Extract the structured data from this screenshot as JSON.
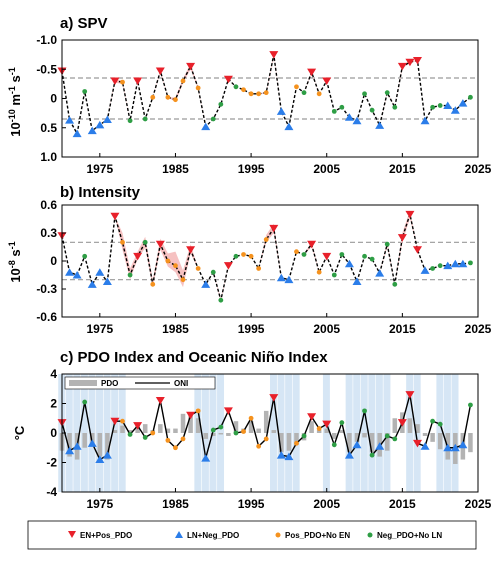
{
  "colors": {
    "en_pos_pdo": "#e8202a",
    "ln_neg_pdo": "#2b7de9",
    "pos_pdo_no_en": "#f5921e",
    "neg_pdo_no_ln": "#2e9e45",
    "line": "#000000",
    "threshold": "#9a9a9a",
    "uncertainty": "#f4b6b6",
    "pdo_bar": "#b3b3b3",
    "ln_shading": "#d6e6f5"
  },
  "chart_data": [
    {
      "type": "line",
      "title": "a) SPV",
      "ylabel_main": "10",
      "ylabel_sup1": "-10",
      "ylabel_mid": " m",
      "ylabel_sup2": "-1",
      "ylabel_mid2": " s",
      "ylabel_sup3": "-1",
      "xlim": [
        1970,
        2025
      ],
      "ylim": [
        1.0,
        -1.0
      ],
      "y_reversed": true,
      "xticks": [
        1975,
        1985,
        1995,
        2005,
        2015,
        2025
      ],
      "yticks": [
        -1.0,
        -0.5,
        0,
        0.5,
        1.0
      ],
      "ytick_labels": [
        "-1.0",
        "-0.5",
        "0",
        "0.5",
        "1.0"
      ],
      "thresholds": [
        -0.35,
        0.35
      ],
      "x": [
        1970,
        1971,
        1972,
        1973,
        1974,
        1975,
        1976,
        1977,
        1978,
        1979,
        1980,
        1981,
        1982,
        1983,
        1984,
        1985,
        1986,
        1987,
        1988,
        1989,
        1990,
        1991,
        1992,
        1993,
        1994,
        1995,
        1996,
        1997,
        1998,
        1999,
        2000,
        2001,
        2002,
        2003,
        2004,
        2005,
        2006,
        2007,
        2008,
        2009,
        2010,
        2011,
        2012,
        2013,
        2014,
        2015,
        2016,
        2017,
        2018,
        2019,
        2020,
        2021,
        2022,
        2023,
        2024
      ],
      "values": [
        -0.47,
        0.37,
        0.6,
        -0.12,
        0.55,
        0.45,
        0.36,
        -0.3,
        -0.28,
        0.38,
        -0.3,
        0.35,
        -0.02,
        -0.47,
        -0.02,
        0.02,
        -0.3,
        -0.55,
        -0.18,
        0.48,
        0.35,
        0.1,
        -0.33,
        -0.2,
        -0.15,
        -0.08,
        -0.08,
        -0.1,
        -0.75,
        0.22,
        0.48,
        -0.2,
        -0.1,
        -0.45,
        -0.08,
        -0.3,
        0.22,
        0.15,
        0.32,
        0.38,
        -0.08,
        0.2,
        0.46,
        -0.1,
        0.15,
        -0.55,
        -0.62,
        -0.65,
        0.38,
        0.15,
        0.12,
        0.12,
        0.2,
        0.08,
        -0.02
      ],
      "band_low": [
        -0.47,
        0.37,
        0.6,
        -0.12,
        0.55,
        0.45,
        0.36,
        -0.33,
        -0.31,
        0.38,
        -0.3,
        0.35,
        -0.02,
        -0.5,
        -0.02,
        -0.02,
        -0.34,
        -0.6,
        -0.2,
        0.48,
        0.35,
        0.1,
        -0.33,
        -0.2,
        -0.15,
        -0.08,
        -0.08,
        -0.12,
        -0.78,
        0.22,
        0.48,
        -0.2,
        -0.1,
        -0.47,
        -0.08,
        -0.3,
        0.22,
        0.15,
        0.32,
        0.38,
        -0.08,
        0.2,
        0.46,
        -0.12,
        0.15,
        -0.58,
        -0.64,
        -0.65,
        0.38,
        0.15,
        0.12,
        0.12,
        0.2,
        0.08,
        -0.02
      ],
      "band_high": [
        -0.47,
        0.37,
        0.6,
        -0.12,
        0.55,
        0.45,
        0.36,
        -0.27,
        -0.25,
        0.38,
        -0.3,
        0.35,
        -0.02,
        -0.44,
        -0.02,
        0.06,
        -0.26,
        -0.5,
        -0.16,
        0.48,
        0.35,
        0.1,
        -0.33,
        -0.2,
        -0.15,
        -0.08,
        -0.08,
        -0.08,
        -0.72,
        0.22,
        0.48,
        -0.2,
        -0.1,
        -0.43,
        -0.08,
        -0.3,
        0.22,
        0.15,
        0.32,
        0.38,
        -0.08,
        0.2,
        0.46,
        -0.08,
        0.15,
        -0.52,
        -0.6,
        -0.65,
        0.38,
        0.15,
        0.12,
        0.12,
        0.2,
        0.08,
        -0.02
      ],
      "categories": [
        "E",
        "L",
        "L",
        "G",
        "L",
        "L",
        "L",
        "E",
        "O",
        "G",
        "E",
        "G",
        "O",
        "E",
        "O",
        "O",
        "O",
        "E",
        "O",
        "L",
        "G",
        "G",
        "E",
        "G",
        "O",
        "O",
        "O",
        "O",
        "E",
        "L",
        "L",
        "O",
        "G",
        "E",
        "O",
        "E",
        "G",
        "G",
        "L",
        "L",
        "G",
        "G",
        "L",
        "G",
        "G",
        "E",
        "E",
        "E",
        "L",
        "G",
        "G",
        "L",
        "L",
        "L",
        "G"
      ]
    },
    {
      "type": "line",
      "title": "b) Intensity",
      "ylabel_main": "10",
      "ylabel_sup1": "-8",
      "ylabel_mid": " s",
      "ylabel_sup2": "-1",
      "xlim": [
        1970,
        2025
      ],
      "ylim": [
        -0.6,
        0.6
      ],
      "xticks": [
        1975,
        1985,
        1995,
        2005,
        2015,
        2025
      ],
      "yticks": [
        -0.6,
        -0.3,
        0,
        0.3,
        0.6
      ],
      "ytick_labels": [
        "-0.6",
        "-0.3",
        "0",
        "0.3",
        "0.6"
      ],
      "thresholds": [
        0.2,
        -0.2
      ],
      "x": [
        1970,
        1971,
        1972,
        1973,
        1974,
        1975,
        1976,
        1977,
        1978,
        1979,
        1980,
        1981,
        1982,
        1983,
        1984,
        1985,
        1986,
        1987,
        1988,
        1989,
        1990,
        1991,
        1992,
        1993,
        1994,
        1995,
        1996,
        1997,
        1998,
        1999,
        2000,
        2001,
        2002,
        2003,
        2004,
        2005,
        2006,
        2007,
        2008,
        2009,
        2010,
        2011,
        2012,
        2013,
        2014,
        2015,
        2016,
        2017,
        2018,
        2019,
        2020,
        2021,
        2022,
        2023,
        2024
      ],
      "values": [
        0.27,
        -0.12,
        -0.15,
        0.05,
        -0.25,
        -0.12,
        -0.22,
        0.48,
        0.2,
        -0.15,
        0.05,
        0.2,
        -0.25,
        0.18,
        0.0,
        -0.05,
        -0.2,
        0.12,
        -0.08,
        -0.25,
        -0.12,
        -0.42,
        -0.05,
        0.05,
        0.07,
        0.05,
        -0.08,
        0.23,
        0.35,
        -0.18,
        -0.2,
        0.1,
        0.07,
        0.18,
        -0.12,
        0.05,
        -0.15,
        0.07,
        -0.03,
        -0.22,
        0.05,
        0.02,
        -0.13,
        0.18,
        -0.25,
        0.25,
        0.5,
        0.12,
        -0.1,
        -0.08,
        -0.05,
        -0.05,
        -0.03,
        -0.03,
        -0.02
      ],
      "band_low": [
        0.27,
        -0.12,
        -0.15,
        0.05,
        -0.25,
        -0.12,
        -0.22,
        0.48,
        0.12,
        -0.2,
        0.02,
        0.14,
        -0.28,
        0.12,
        -0.06,
        -0.12,
        -0.28,
        0.08,
        -0.08,
        -0.25,
        -0.12,
        -0.44,
        -0.05,
        0.05,
        0.07,
        0.05,
        -0.08,
        0.2,
        0.3,
        -0.18,
        -0.2,
        0.1,
        0.07,
        0.15,
        -0.12,
        0.05,
        -0.15,
        0.07,
        -0.03,
        -0.22,
        0.05,
        0.02,
        -0.13,
        0.15,
        -0.25,
        0.2,
        0.46,
        0.12,
        -0.1,
        -0.08,
        -0.05,
        -0.05,
        -0.03,
        -0.03,
        -0.02
      ],
      "band_high": [
        0.27,
        -0.12,
        -0.15,
        0.05,
        -0.25,
        -0.12,
        -0.22,
        0.48,
        0.3,
        -0.08,
        0.1,
        0.26,
        -0.2,
        0.24,
        0.08,
        0.1,
        -0.1,
        0.18,
        -0.08,
        -0.25,
        -0.12,
        -0.4,
        -0.05,
        0.05,
        0.07,
        0.05,
        -0.08,
        0.28,
        0.4,
        -0.18,
        -0.2,
        0.1,
        0.07,
        0.21,
        -0.12,
        0.05,
        -0.15,
        0.07,
        -0.03,
        -0.22,
        0.05,
        0.02,
        -0.13,
        0.21,
        -0.25,
        0.3,
        0.54,
        0.12,
        -0.1,
        -0.08,
        -0.05,
        -0.05,
        -0.03,
        -0.03,
        -0.02
      ],
      "categories": [
        "E",
        "L",
        "L",
        "G",
        "L",
        "L",
        "L",
        "E",
        "O",
        "G",
        "E",
        "G",
        "O",
        "E",
        "O",
        "O",
        "O",
        "E",
        "O",
        "L",
        "G",
        "G",
        "E",
        "G",
        "O",
        "O",
        "O",
        "O",
        "E",
        "L",
        "L",
        "O",
        "G",
        "E",
        "O",
        "E",
        "G",
        "G",
        "L",
        "L",
        "G",
        "G",
        "L",
        "G",
        "G",
        "E",
        "E",
        "E",
        "L",
        "G",
        "G",
        "L",
        "L",
        "L",
        "G"
      ]
    },
    {
      "type": "bar+line",
      "title": "c) PDO Index and Oceanic Niño Index",
      "ylabel": "°C",
      "xlim": [
        1970,
        2025
      ],
      "ylim": [
        -4,
        4
      ],
      "xticks": [
        1975,
        1985,
        1995,
        2005,
        2015,
        2025
      ],
      "yticks": [
        -4,
        -2,
        0,
        2,
        4
      ],
      "ytick_labels": [
        "-4",
        "-2",
        "0",
        "2",
        "4"
      ],
      "legend": [
        {
          "name": "PDO",
          "kind": "bar"
        },
        {
          "name": "ONI",
          "kind": "line"
        }
      ],
      "legend_position": "top-left",
      "x": [
        1970,
        1971,
        1972,
        1973,
        1974,
        1975,
        1976,
        1977,
        1978,
        1979,
        1980,
        1981,
        1982,
        1983,
        1984,
        1985,
        1986,
        1987,
        1988,
        1989,
        1990,
        1991,
        1992,
        1993,
        1994,
        1995,
        1996,
        1997,
        1998,
        1999,
        2000,
        2001,
        2002,
        2003,
        2004,
        2005,
        2006,
        2007,
        2008,
        2009,
        2010,
        2011,
        2012,
        2013,
        2014,
        2015,
        2016,
        2017,
        2018,
        2019,
        2020,
        2021,
        2022,
        2023,
        2024
      ],
      "oni": [
        0.7,
        -1.2,
        -0.9,
        2.1,
        -0.7,
        -1.8,
        -1.5,
        0.8,
        0.8,
        -0.1,
        0.5,
        -0.3,
        0.0,
        2.2,
        -0.5,
        -1.0,
        -0.4,
        1.2,
        1.5,
        -1.7,
        0.2,
        0.4,
        1.5,
        0.0,
        0.1,
        1.0,
        -0.9,
        -0.4,
        2.4,
        -1.5,
        -1.6,
        -0.7,
        -0.2,
        1.1,
        0.3,
        0.6,
        -0.8,
        0.7,
        -1.5,
        -0.8,
        1.5,
        -1.5,
        -0.9,
        -0.2,
        -0.4,
        0.7,
        2.6,
        -0.7,
        -0.9,
        0.8,
        0.6,
        -1.0,
        -1.0,
        -0.8,
        1.9
      ],
      "pdo": [
        -1.2,
        -1.6,
        -1.8,
        -1.0,
        -0.8,
        -1.6,
        -1.8,
        0.2,
        0.5,
        0.2,
        0.6,
        0.6,
        0.2,
        0.6,
        0.3,
        0.3,
        1.3,
        1.3,
        1.0,
        -0.4,
        -0.2,
        -0.1,
        -0.2,
        0.8,
        0.3,
        0.8,
        0.3,
        1.5,
        0.2,
        -1.3,
        -1.2,
        -0.8,
        -0.5,
        0.8,
        0.2,
        0.3,
        -0.4,
        0.2,
        -1.3,
        -0.6,
        -0.3,
        -1.3,
        -1.6,
        -1.2,
        1.0,
        1.4,
        1.0,
        0.6,
        -0.2,
        -0.6,
        -1.1,
        -1.8,
        -2.1,
        -1.8,
        -1.3
      ],
      "ln_shaded_years": [
        1970,
        1971,
        1972,
        1973,
        1974,
        1975,
        1976,
        1977,
        1978,
        1988,
        1989,
        1990,
        1991,
        1998,
        1999,
        2000,
        2001,
        2005,
        2008,
        2009,
        2010,
        2011,
        2012,
        2013,
        2016,
        2017,
        2020,
        2021,
        2022
      ],
      "categories": [
        "E",
        "L",
        "L",
        "G",
        "L",
        "L",
        "L",
        "E",
        "O",
        "G",
        "E",
        "G",
        "O",
        "E",
        "O",
        "O",
        "O",
        "E",
        "O",
        "L",
        "G",
        "G",
        "E",
        "G",
        "O",
        "O",
        "O",
        "O",
        "E",
        "L",
        "L",
        "O",
        "G",
        "E",
        "O",
        "E",
        "G",
        "G",
        "L",
        "L",
        "G",
        "G",
        "L",
        "G",
        "G",
        "E",
        "E",
        "E",
        "L",
        "G",
        "G",
        "L",
        "L",
        "L",
        "G"
      ]
    }
  ],
  "legend_bottom": {
    "items": [
      {
        "key": "E",
        "label": "EN+Pos_PDO",
        "marker": "triangle-down-icon"
      },
      {
        "key": "L",
        "label": "LN+Neg_PDO",
        "marker": "triangle-up-icon"
      },
      {
        "key": "O",
        "label": "Pos_PDO+No EN",
        "marker": "dot-icon"
      },
      {
        "key": "G",
        "label": "Neg_PDO+No LN",
        "marker": "dot-icon"
      }
    ]
  }
}
